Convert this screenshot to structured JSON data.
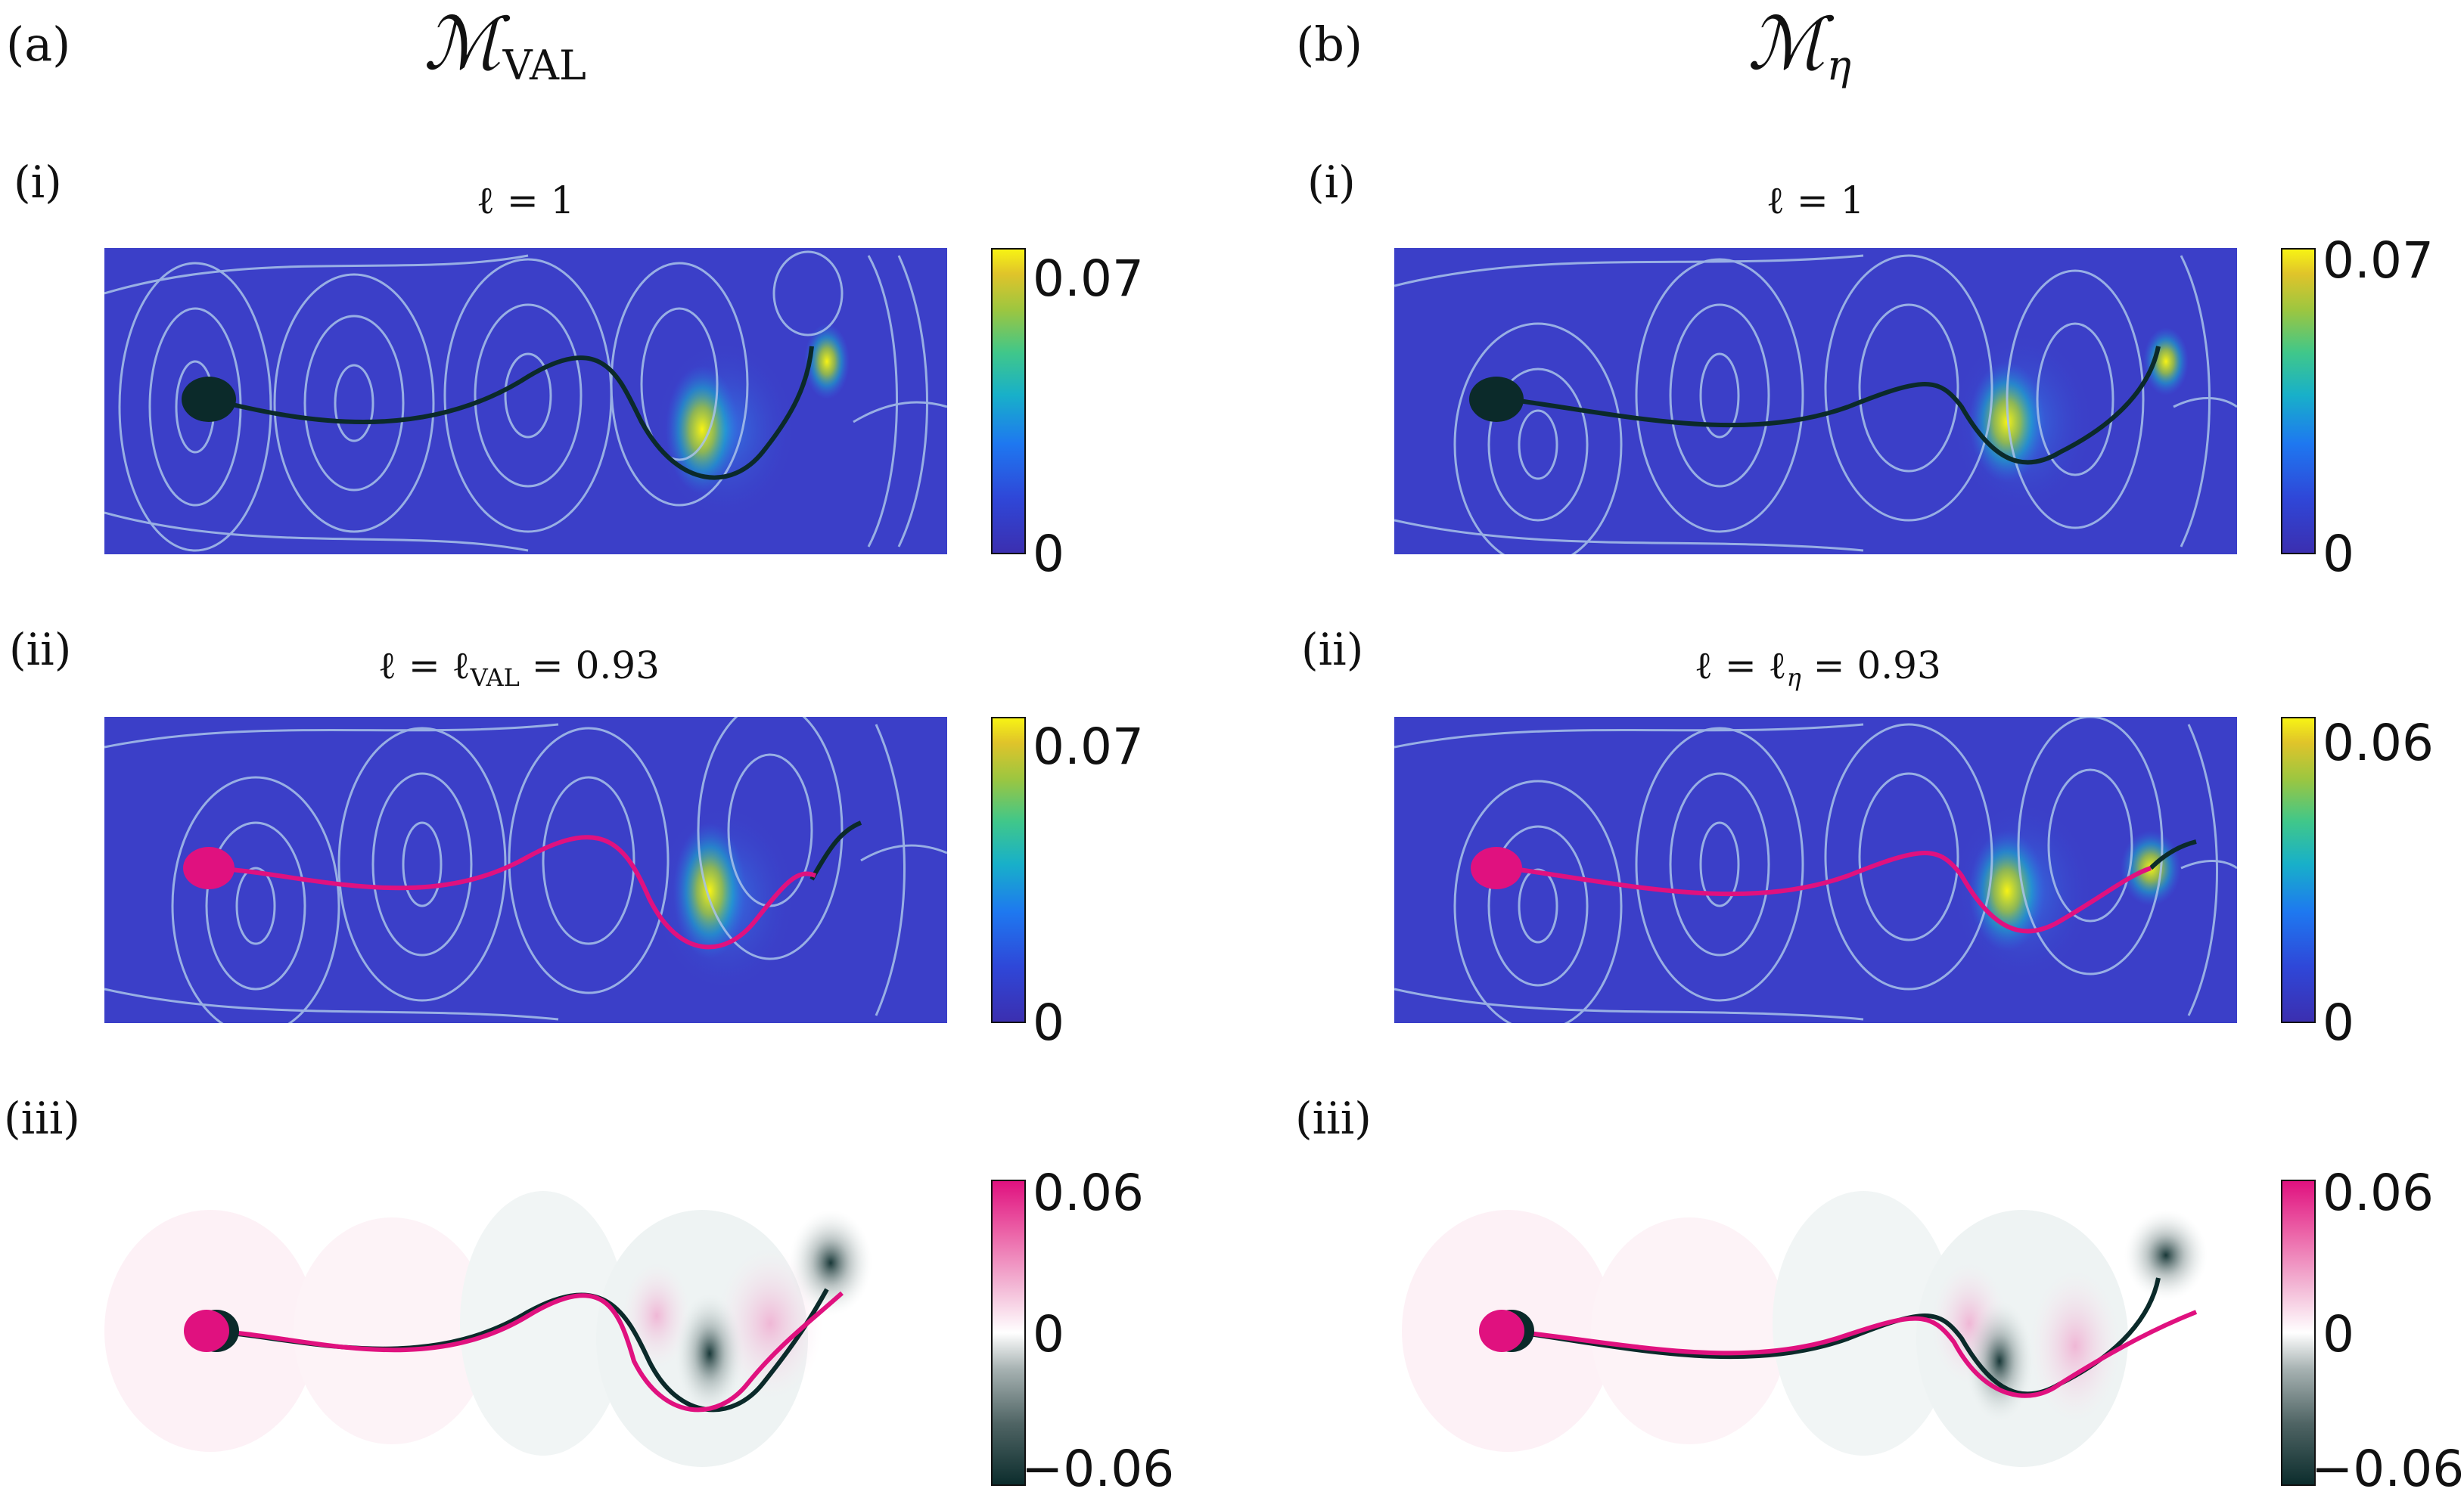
{
  "columns": {
    "a": {
      "label": "(a)",
      "title_main": "ℳ",
      "title_sub": "VAL"
    },
    "b": {
      "label": "(b)",
      "title_main": "ℳ",
      "title_sub": "η"
    }
  },
  "panels": {
    "a_i": {
      "row_label": "(i)",
      "title_pre": "ℓ = 1",
      "title_sub": "",
      "title_post": "",
      "cbar_max": "0.07",
      "cbar_min": "0"
    },
    "a_ii": {
      "row_label": "(ii)",
      "title_pre": "ℓ = ℓ",
      "title_sub": "VAL",
      "title_post": " = 0.93",
      "cbar_max": "0.07",
      "cbar_min": "0"
    },
    "a_iii": {
      "row_label": "(iii)",
      "cbar_max": "0.06",
      "cbar_mid": "0",
      "cbar_min": "−0.06"
    },
    "b_i": {
      "row_label": "(i)",
      "title_pre": "ℓ = 1",
      "title_sub": "",
      "title_post": "",
      "cbar_max": "0.07",
      "cbar_min": "0"
    },
    "b_ii": {
      "row_label": "(ii)",
      "title_pre": "ℓ = ℓ",
      "title_sub": "η",
      "title_post": " = 0.93",
      "cbar_max": "0.06",
      "cbar_min": "0"
    },
    "b_iii": {
      "row_label": "(iii)",
      "cbar_max": "0.06",
      "cbar_mid": "0",
      "cbar_min": "−0.06"
    }
  },
  "colors": {
    "field_bg": "#3b3fc8",
    "streamline": "#a9c3ea",
    "body_black": "#0b2a2a",
    "body_pink": "#e0117f",
    "hot": "#f7f314"
  }
}
